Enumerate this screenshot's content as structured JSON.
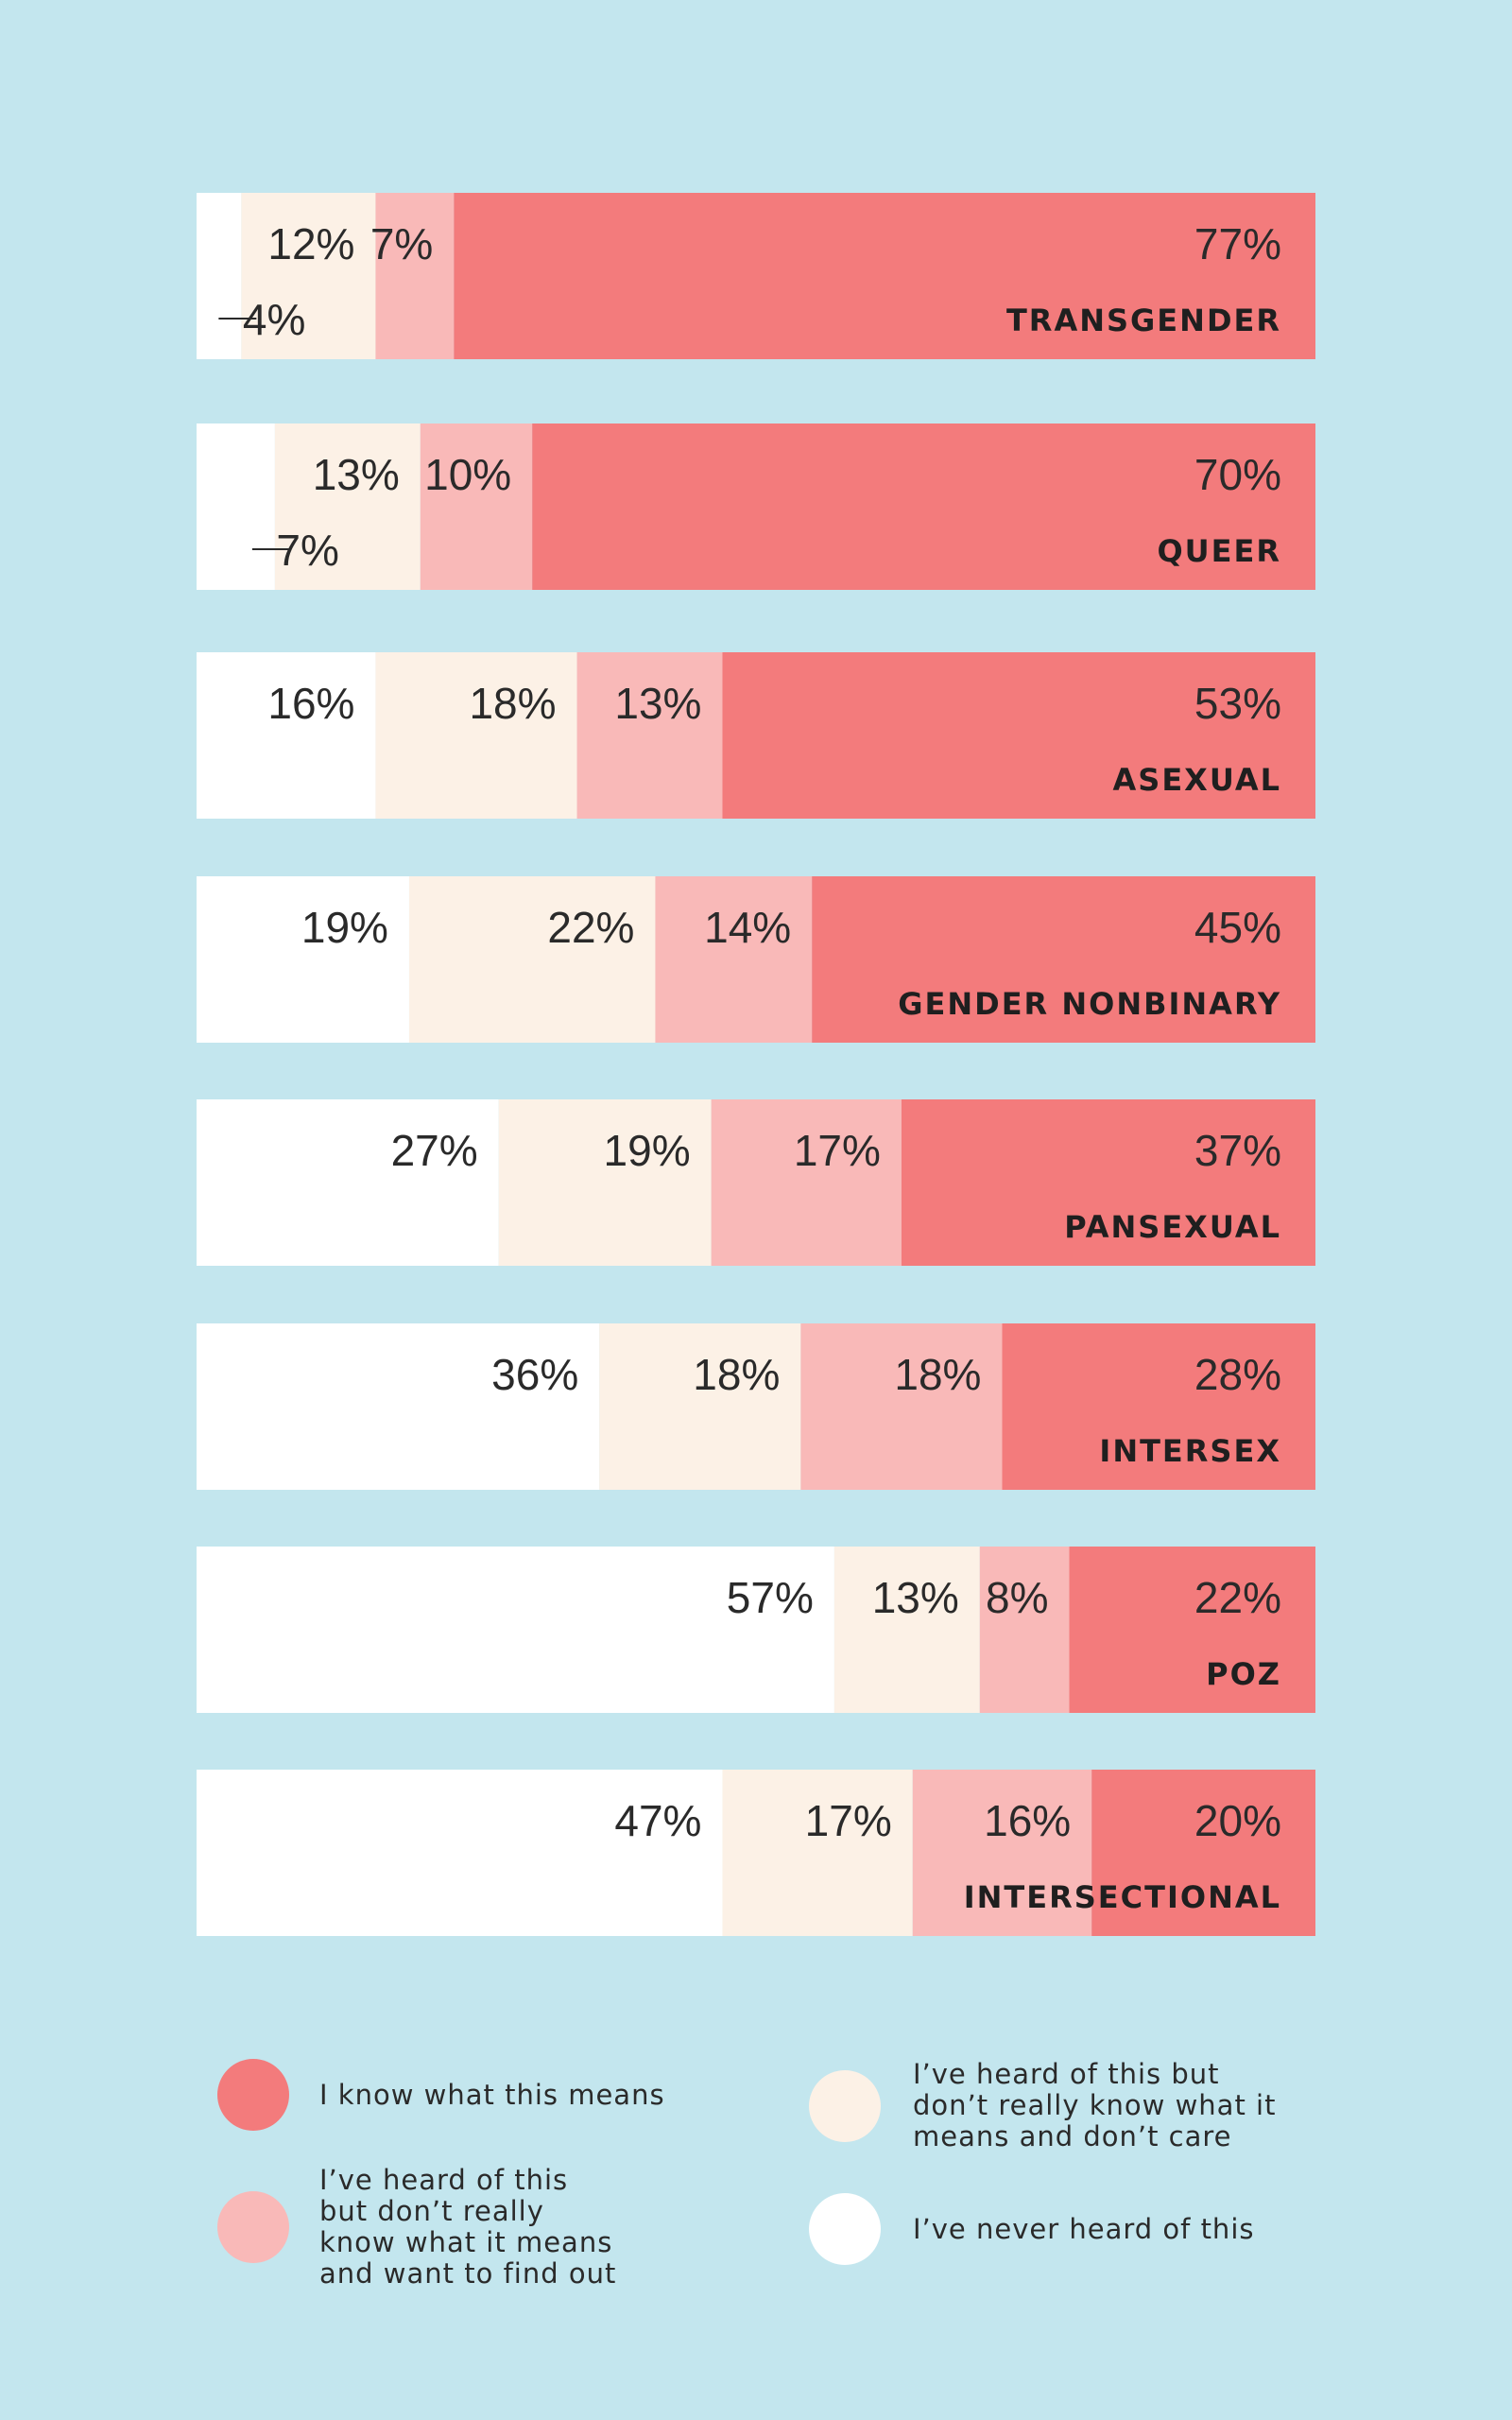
{
  "colors": {
    "background": "#c3e6ee",
    "know": "#f37b7c",
    "want_to_find_out": "#f9b9b8",
    "dont_care": "#fcf1e6",
    "never_heard": "#ffffff"
  },
  "chart_data": {
    "type": "bar",
    "orientation": "horizontal-stacked-100",
    "stack_order": [
      "never_heard",
      "dont_care",
      "want_to_find_out",
      "know"
    ],
    "categories": [
      "TRANSGENDER",
      "QUEER",
      "ASEXUAL",
      "GENDER NONBINARY",
      "PANSEXUAL",
      "INTERSEX",
      "POZ",
      "INTERSECTIONAL"
    ],
    "series": [
      {
        "key": "never_heard",
        "name": "I’ve never heard of this",
        "values": [
          4,
          7,
          16,
          19,
          27,
          36,
          57,
          47
        ],
        "labels": [
          "4%",
          "7%",
          "16%",
          "19%",
          "27%",
          "36%",
          "57%",
          "47%"
        ]
      },
      {
        "key": "dont_care",
        "name": "I’ve heard of this but don’t really know what it means and don’t care",
        "values": [
          12,
          13,
          18,
          22,
          19,
          18,
          13,
          17
        ],
        "labels": [
          "12%",
          "13%",
          "18%",
          "22%",
          "19%",
          "18%",
          "13%",
          "17%"
        ]
      },
      {
        "key": "want_to_find_out",
        "name": "I’ve heard of this but don’t really know what it means and want to find out",
        "values": [
          7,
          10,
          13,
          14,
          17,
          18,
          8,
          16
        ],
        "labels": [
          "7%",
          "10%",
          "13%",
          "14%",
          "17%",
          "18%",
          "8%",
          "16%"
        ]
      },
      {
        "key": "know",
        "name": "I know what this means",
        "values": [
          77,
          70,
          53,
          45,
          37,
          28,
          22,
          20
        ],
        "labels": [
          "77%",
          "70%",
          "53%",
          "45%",
          "37%",
          "28%",
          "22%",
          "20%"
        ]
      }
    ],
    "xlim": [
      0,
      100
    ],
    "legend": {
      "placement": "bottom",
      "items": [
        {
          "key": "know",
          "lines": [
            "I know what this means"
          ]
        },
        {
          "key": "dont_care",
          "lines": [
            "I’ve heard of this but",
            "don’t really know what it",
            "means and don’t care"
          ]
        },
        {
          "key": "want_to_find_out",
          "lines": [
            "I’ve heard of this",
            "but don’t really",
            "know what it means",
            "and want to find out"
          ]
        },
        {
          "key": "never_heard",
          "lines": [
            "I’ve never heard of this"
          ]
        }
      ]
    }
  }
}
